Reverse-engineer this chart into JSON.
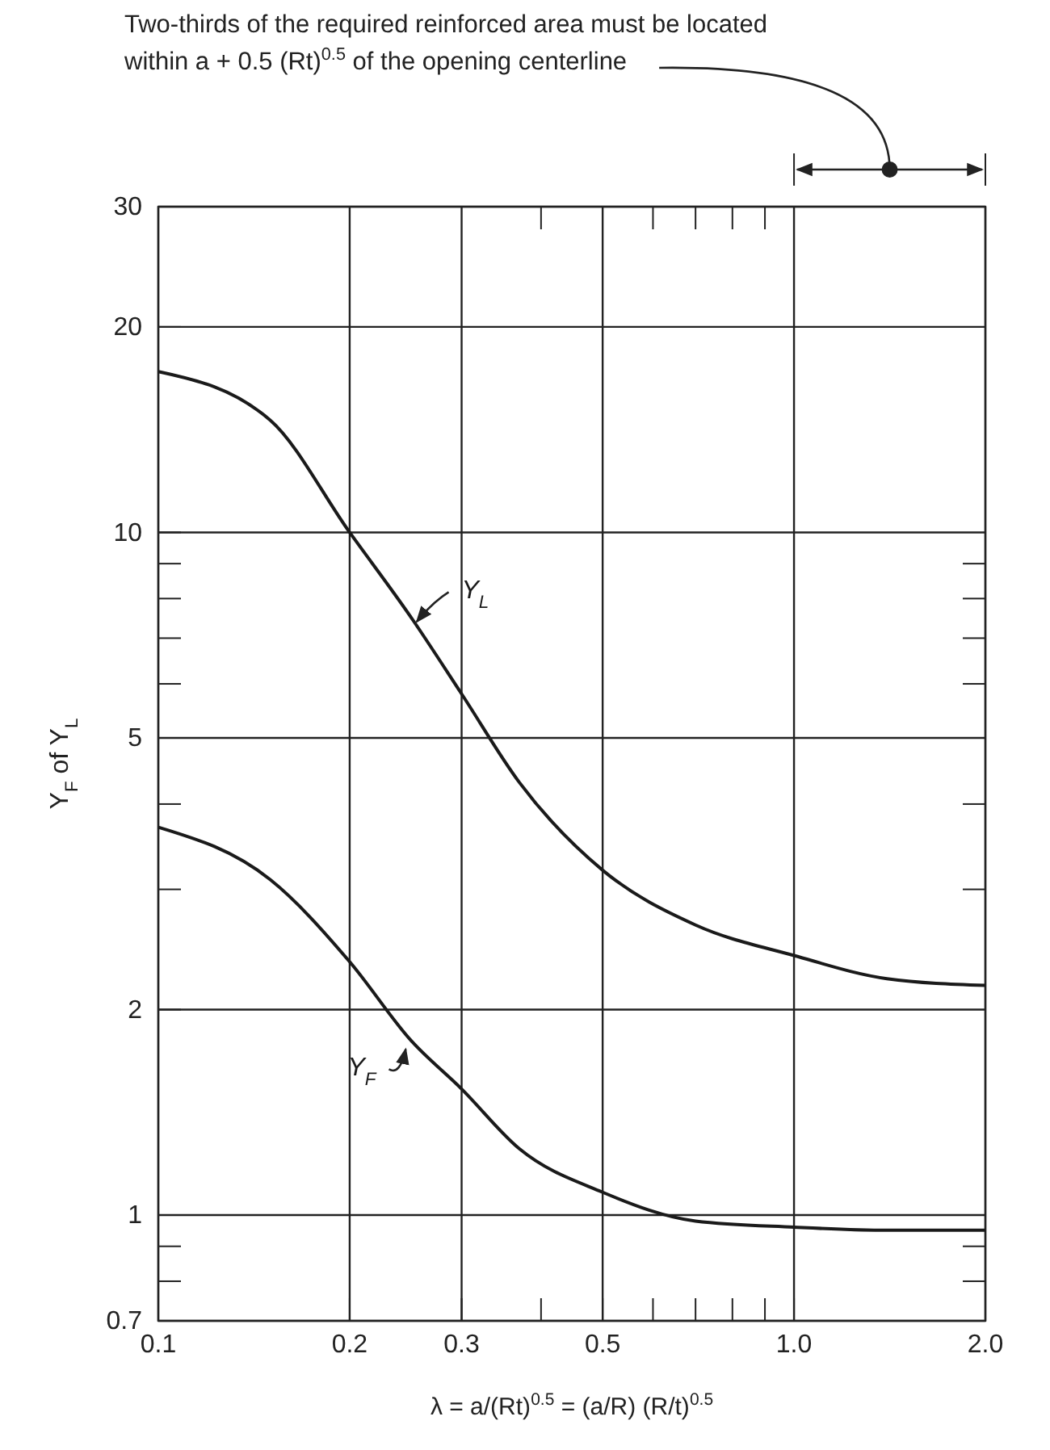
{
  "chart_data": {
    "type": "line",
    "xlabel": "λ = a/(Rt)$^{0.5}$  =  (a/R) (R/t)$^{0.5}$",
    "ylabel": "Y$_{F}$ of Y$_{L}$",
    "annotations": [
      "Two-thirds of the required reinforced area must be located within a + 0.5 (Rt)$^{0.5}$ of the opening centerline"
    ],
    "log": "xy",
    "grid": true,
    "marker": "none",
    "line_style": "solid",
    "xlim": [
      0.1,
      2.0
    ],
    "xticks": [
      0.1,
      0.2,
      0.3,
      {
        "value": 0.4,
        "label": null
      },
      0.5,
      {
        "value": 0.6,
        "label": null
      },
      {
        "value": 0.7,
        "label": null
      },
      {
        "value": 0.8,
        "label": null
      },
      {
        "value": 0.9,
        "label": null
      },
      {
        "value": 1.0,
        "label": "1.0"
      },
      {
        "value": 2.0,
        "label": "2.0"
      }
    ],
    "ylim": [
      0.7,
      30
    ],
    "yticks": [
      0.7,
      {
        "value": 0.8,
        "label": null
      },
      {
        "value": 0.9,
        "label": null
      },
      1,
      2,
      {
        "value": 3,
        "label": null
      },
      {
        "value": 4,
        "label": null
      },
      5,
      {
        "value": 6,
        "label": null
      },
      {
        "value": 7,
        "label": null
      },
      {
        "value": 8,
        "label": null
      },
      {
        "value": 9,
        "label": null
      },
      10,
      20,
      30
    ],
    "x": [
      0.1,
      0.15,
      0.2,
      0.25,
      0.3,
      0.37,
      0.5,
      0.7,
      1.0,
      1.4,
      2.0
    ],
    "series": [
      {
        "name": "Y$_{L}$",
        "color": "#1a1a1a",
        "values": [
          17.2,
          14.6,
          10,
          7.5,
          5.8,
          4.3,
          3.2,
          2.66,
          2.4,
          2.22,
          2.17
        ]
      },
      {
        "name": "Y$_{F}$",
        "color": "#1a1a1a",
        "values": [
          3.7,
          3.1,
          2.35,
          1.8,
          1.53,
          1.25,
          1.08,
          0.98,
          0.96,
          0.95,
          0.95
        ]
      }
    ]
  }
}
